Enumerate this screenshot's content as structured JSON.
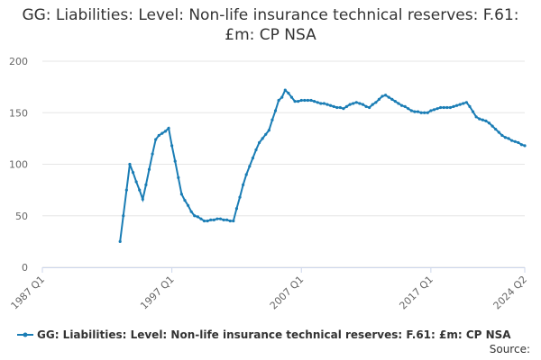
{
  "chart_data": {
    "type": "line",
    "title": "GG: Liabilities: Level: Non-life insurance technical reserves: F.61: £m: CP NSA",
    "source_label": "Source:",
    "categories": [
      "1987 Q1",
      null,
      null,
      null,
      null,
      null,
      null,
      null,
      null,
      null,
      null,
      null,
      null,
      null,
      null,
      null,
      null,
      null,
      null,
      null,
      null,
      null,
      null,
      null,
      null,
      null,
      null,
      null,
      null,
      null,
      null,
      null,
      null,
      null,
      null,
      null,
      null,
      null,
      null,
      null,
      "1997 Q1",
      null,
      null,
      null,
      null,
      null,
      null,
      null,
      null,
      null,
      null,
      null,
      null,
      null,
      null,
      null,
      null,
      null,
      null,
      null,
      null,
      null,
      null,
      null,
      null,
      null,
      null,
      null,
      null,
      null,
      null,
      null,
      null,
      null,
      null,
      null,
      null,
      null,
      null,
      null,
      "2007 Q1",
      null,
      null,
      null,
      null,
      null,
      null,
      null,
      null,
      null,
      null,
      null,
      null,
      null,
      null,
      null,
      null,
      null,
      null,
      null,
      null,
      null,
      null,
      null,
      null,
      null,
      null,
      null,
      null,
      null,
      null,
      null,
      null,
      null,
      null,
      null,
      null,
      null,
      null,
      null,
      "2017 Q1",
      null,
      null,
      null,
      null,
      null,
      null,
      null,
      null,
      null,
      null,
      null,
      null,
      null,
      null,
      null,
      null,
      null,
      null,
      null,
      null,
      null,
      null,
      null,
      null,
      null,
      null,
      null,
      null,
      "2024 Q2"
    ],
    "series": [
      {
        "name": "GG: Liabilities: Level: Non-life insurance technical reserves: F.61: £m: CP NSA",
        "color": "#1a7db5",
        "values": [
          null,
          null,
          null,
          null,
          null,
          null,
          null,
          null,
          null,
          null,
          null,
          null,
          null,
          null,
          null,
          null,
          null,
          null,
          null,
          null,
          null,
          null,
          null,
          null,
          25,
          50,
          75,
          100,
          92,
          83,
          75,
          66,
          80,
          95,
          110,
          124,
          128,
          130,
          132,
          135,
          118,
          103,
          87,
          71,
          65,
          60,
          54,
          50,
          49,
          47,
          45,
          45,
          46,
          46,
          47,
          47,
          46,
          46,
          45,
          45,
          57,
          68,
          80,
          90,
          98,
          106,
          114,
          121,
          125,
          129,
          133,
          143,
          152,
          162,
          165,
          172,
          169,
          165,
          161,
          161,
          162,
          162,
          162,
          162,
          161,
          160,
          159,
          159,
          158,
          157,
          156,
          155,
          155,
          154,
          156,
          158,
          159,
          160,
          159,
          158,
          156,
          155,
          158,
          160,
          163,
          166,
          167,
          165,
          163,
          161,
          159,
          157,
          156,
          154,
          152,
          151,
          151,
          150,
          150,
          150,
          152,
          153,
          154,
          155,
          155,
          155,
          155,
          156,
          157,
          158,
          159,
          160,
          156,
          151,
          146,
          144,
          143,
          142,
          140,
          137,
          134,
          131,
          128,
          126,
          125,
          123,
          122,
          121,
          119,
          118
        ]
      }
    ],
    "ylim": [
      0,
      200
    ],
    "yticks": [
      0,
      50,
      100,
      150,
      200
    ],
    "grid": true
  }
}
